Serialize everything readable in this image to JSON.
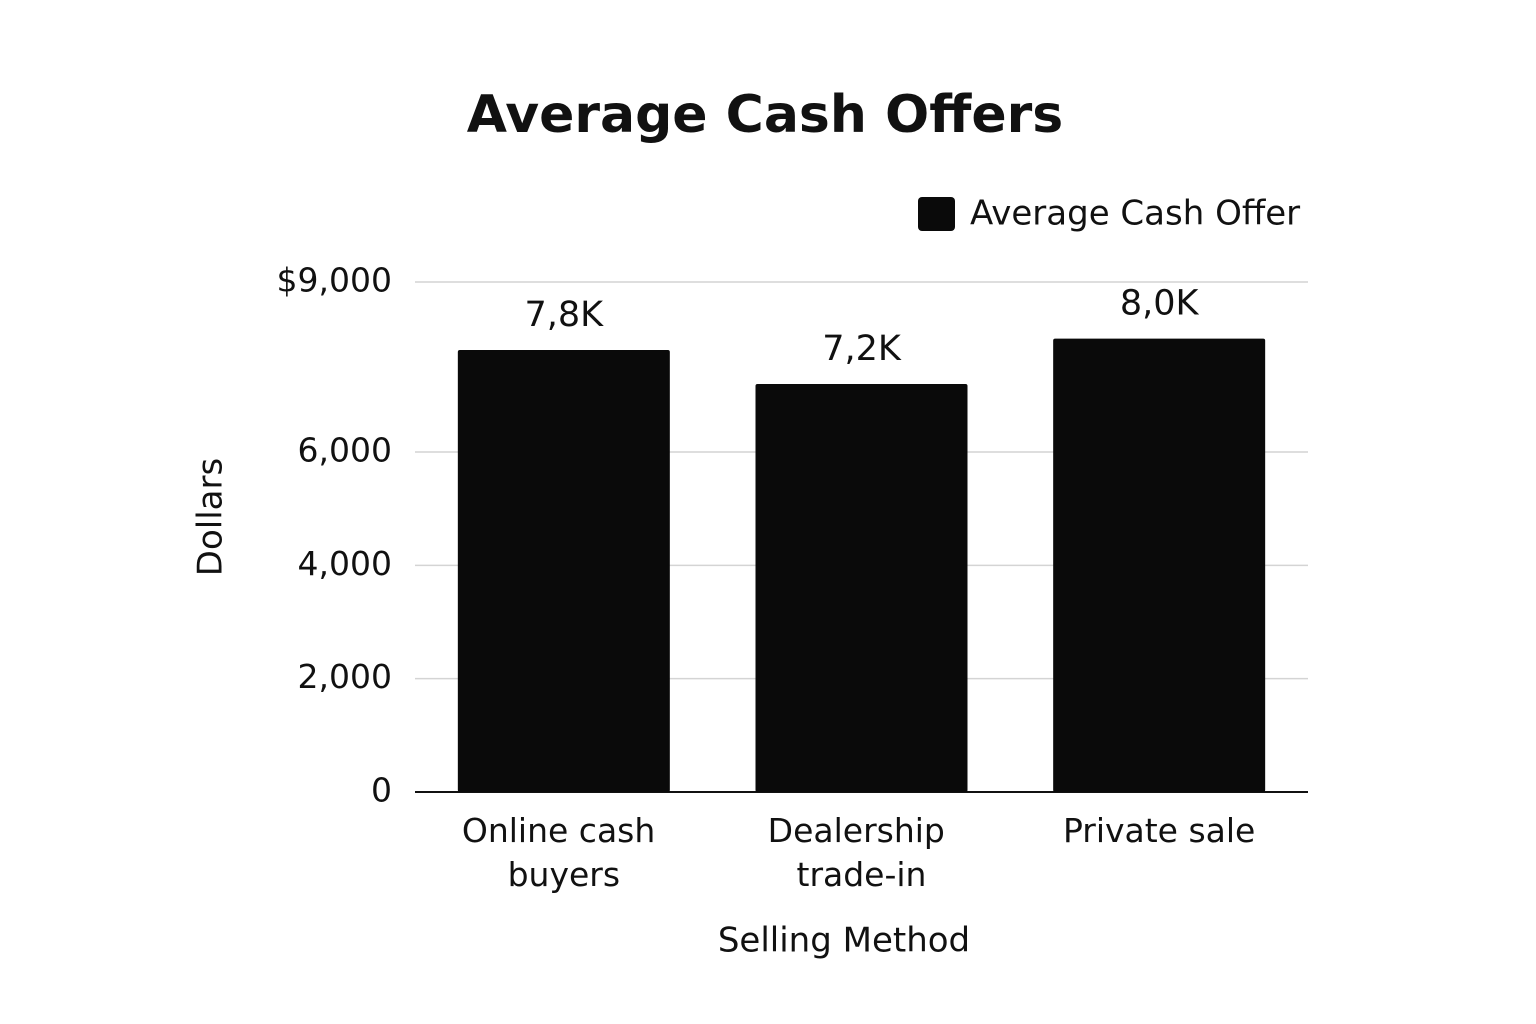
{
  "chart_data": {
    "type": "bar",
    "title": "Average Cash Offers",
    "x_label": "Selling Method",
    "y_label": "Dollars",
    "categories": [
      "Online cash buyers",
      "Dealership trade-in",
      "Private sale"
    ],
    "series": [
      {
        "name": "Average Cash Offer",
        "color": "#0a0a0a",
        "values": [
          7800,
          7200,
          8000
        ],
        "value_labels": [
          "7,8K",
          "7,2K",
          "8,0K"
        ]
      }
    ],
    "ylim": [
      0,
      9000
    ],
    "yticks": [
      0,
      {
        "value": 2000,
        "label": "2,000"
      },
      {
        "value": 4000,
        "label": "4,000"
      },
      {
        "value": 6000,
        "label": "6,000"
      },
      {
        "value": 9000,
        "label": "$9,000"
      }
    ],
    "grid": true,
    "legend": "top-right"
  }
}
